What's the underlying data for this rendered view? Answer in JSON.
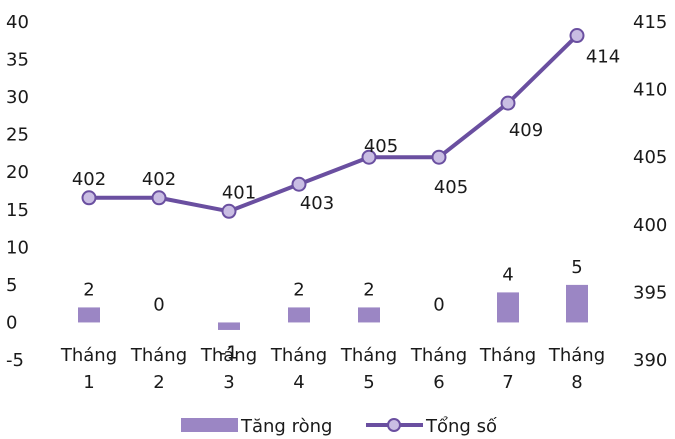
{
  "chart_data": {
    "type": "bar+line",
    "categories": [
      [
        "Tháng",
        "1"
      ],
      [
        "Tháng",
        "2"
      ],
      [
        "Tháng",
        "3"
      ],
      [
        "Tháng",
        "4"
      ],
      [
        "Tháng",
        "5"
      ],
      [
        "Tháng",
        "6"
      ],
      [
        "Tháng",
        "7"
      ],
      [
        "Tháng",
        "8"
      ]
    ],
    "series": [
      {
        "name": "Tăng ròng",
        "kind": "bar",
        "axis": "left",
        "values": [
          2,
          0,
          -1,
          2,
          2,
          0,
          4,
          5
        ],
        "labels": [
          "2",
          "0",
          "-1",
          "2",
          "2",
          "0",
          "4",
          "5"
        ],
        "color": "#9b86c4"
      },
      {
        "name": "Tổng số",
        "kind": "line",
        "axis": "right",
        "values": [
          402,
          402,
          401,
          403,
          405,
          405,
          409,
          414
        ],
        "labels": [
          "402",
          "402",
          "401",
          "403",
          "405",
          "405",
          "409",
          "414"
        ],
        "color": "#6a4fa0",
        "marker_fill": "#c9bde3"
      }
    ],
    "left_axis": {
      "min": -5,
      "max": 40,
      "ticks": [
        "-5",
        "0",
        "5",
        "10",
        "15",
        "20",
        "25",
        "30",
        "35",
        "40"
      ]
    },
    "right_axis": {
      "min": 390,
      "max": 415,
      "ticks": [
        "390",
        "395",
        "400",
        "405",
        "410",
        "415"
      ]
    },
    "grid": false,
    "legend_position": "bottom"
  }
}
